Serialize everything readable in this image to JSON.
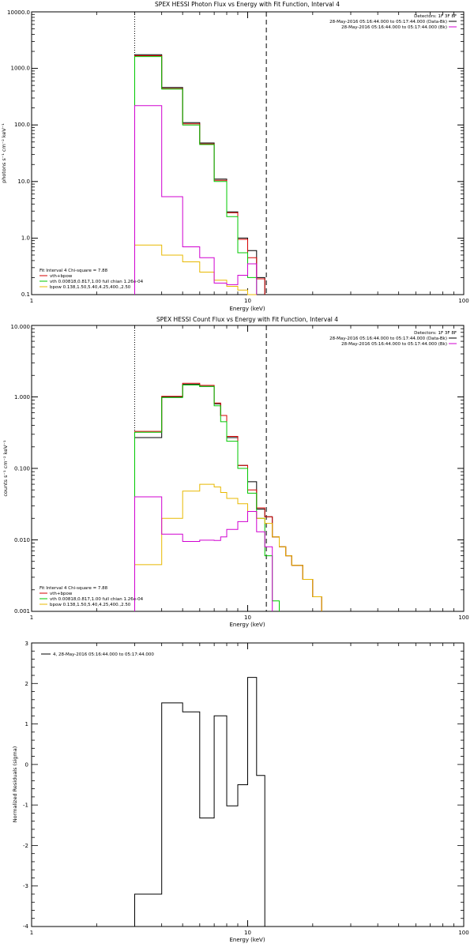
{
  "colors": {
    "data": "#000000",
    "total": "#d40000",
    "thermal": "#00c800",
    "bpow": "#e8b800",
    "background": "#d000d0"
  },
  "chart_data": [
    {
      "type": "line",
      "title": "SPEX HESSI Photon Flux vs Energy with Fit Function, Interval 4",
      "xlabel": "Energy (keV)",
      "ylabel": "photons s⁻¹ cm⁻² keV⁻¹",
      "xscale": "log",
      "yscale": "log",
      "xlim": [
        1,
        100
      ],
      "ylim": [
        0.1,
        10000
      ],
      "xtick_labels": [
        "1",
        "10",
        "100"
      ],
      "ytick_labels": [
        "0.1",
        "1.0",
        "10.0",
        "100.0",
        "1000.0",
        "10000.0"
      ],
      "vlines": [
        {
          "x": 3,
          "style": "dotted"
        },
        {
          "x": 12.2,
          "style": "dashed"
        }
      ],
      "legend_tr": [
        "Detectors: 1F 3F 8F",
        "28-May-2016 05:16:44.000 to 05:17:44.000 (Data-Bk)",
        "28-May-2016 05:16:44.000 to 05:17:44.000 (Bk)"
      ],
      "legend_bl_title": "Fit Interval  4   Chi-square = 7.88",
      "legend_bl": [
        "vth+bpow",
        "vth 0.00818,0.817,1.00  full chian 1.26e-04",
        "bpow 0.138,1.50,5.40,4.25,400.,2.50"
      ],
      "edges": [
        3,
        4,
        5,
        6,
        7,
        8,
        9,
        10,
        11,
        12,
        13
      ],
      "series": [
        {
          "name": "Data-Bk",
          "values": [
            1750,
            460,
            110,
            48,
            11,
            2.9,
            1.0,
            0.6,
            0.2,
            0.1
          ]
        },
        {
          "name": "vth+bpow",
          "values": [
            1680,
            440,
            105,
            46,
            10.5,
            2.8,
            0.95,
            0.45,
            0.19,
            null
          ]
        },
        {
          "name": "vth",
          "values": [
            1620,
            430,
            100,
            45,
            10,
            2.4,
            0.55,
            0.2,
            null,
            null
          ]
        },
        {
          "name": "bpow",
          "values": [
            0.75,
            0.5,
            0.38,
            0.25,
            0.18,
            0.14,
            0.12,
            0.1,
            null,
            null
          ]
        },
        {
          "name": "Bk",
          "values": [
            220,
            5.4,
            0.7,
            0.45,
            0.16,
            0.15,
            0.22,
            0.35,
            null,
            null
          ]
        }
      ]
    },
    {
      "type": "line",
      "title": "SPEX HESSI Count Flux vs Energy with Fit Function, Interval 4",
      "xlabel": "Energy (keV)",
      "ylabel": "counts s⁻¹ cm⁻² keV⁻¹",
      "xscale": "log",
      "yscale": "log",
      "xlim": [
        1,
        100
      ],
      "ylim": [
        0.001,
        10
      ],
      "xtick_labels": [
        "1",
        "10",
        "100"
      ],
      "ytick_labels": [
        "0.001",
        "0.010",
        "0.100",
        "1.000",
        "10.000"
      ],
      "vlines": [
        {
          "x": 3,
          "style": "dotted"
        },
        {
          "x": 12.2,
          "style": "dashed"
        }
      ],
      "legend_tr": [
        "Detectors: 1F 3F 8F",
        "28-May-2016 05:16:44.000 to 05:17:44.000 (Data-Bk)",
        "28-May-2016 05:16:44.000 to 05:17:44.000 (Bk)"
      ],
      "legend_bl_title": "Fit Interval  4   Chi-square = 7.88",
      "legend_bl": [
        "vth+bpow",
        "vth 0.00818,0.817,1.00  full chian 1.26e-04",
        "bpow 0.138,1.50,5.40,4.25,400.,2.50"
      ],
      "edges": [
        3,
        4,
        5,
        6,
        7,
        7.5,
        8,
        9,
        10,
        11,
        12,
        13,
        14,
        15,
        16,
        18,
        20,
        22
      ],
      "series": [
        {
          "name": "Data-Bk",
          "values": [
            0.27,
            1.0,
            1.5,
            1.4,
            0.8,
            0.55,
            0.27,
            0.11,
            0.065,
            0.027,
            0.021,
            0.011,
            0.008,
            0.006,
            0.0044,
            0.0028,
            0.0016
          ]
        },
        {
          "name": "vth+bpow",
          "values": [
            0.33,
            1.02,
            1.55,
            1.45,
            0.82,
            0.55,
            0.28,
            0.11,
            0.05,
            0.028,
            0.021,
            0.011,
            0.008,
            0.006,
            0.0044,
            0.0028,
            0.0016
          ]
        },
        {
          "name": "vth",
          "values": [
            0.32,
            0.98,
            1.47,
            1.4,
            0.75,
            0.45,
            0.24,
            0.1,
            0.045,
            0.02,
            0.006,
            0.0014,
            null,
            null,
            null,
            null,
            null
          ]
        },
        {
          "name": "bpow",
          "values": [
            0.0045,
            0.02,
            0.048,
            0.06,
            0.055,
            0.046,
            0.038,
            0.032,
            0.025,
            0.02,
            0.017,
            0.011,
            0.008,
            0.006,
            0.0044,
            0.0028,
            0.0016
          ]
        },
        {
          "name": "Bk",
          "values": [
            0.04,
            0.012,
            0.0095,
            0.0099,
            0.0098,
            0.011,
            0.014,
            0.018,
            0.025,
            0.013,
            0.008,
            null,
            null,
            null,
            null,
            null,
            null
          ]
        }
      ]
    },
    {
      "type": "line",
      "xlabel": "Energy (keV)",
      "ylabel": "Normalized Residuals (sigma)",
      "xscale": "log",
      "xlim": [
        1,
        100
      ],
      "ylim": [
        -4,
        3
      ],
      "xtick_labels": [
        "1",
        "10",
        "100"
      ],
      "ytick_labels": [
        "-4",
        "-3",
        "-2",
        "-1",
        "0",
        "1",
        "2",
        "3"
      ],
      "legend_tl": "4, 28-May-2016 05:16:44.000 to 05:17:44.000",
      "edges": [
        3,
        4,
        5,
        6,
        7,
        8,
        9,
        10,
        11,
        12
      ],
      "series": [
        {
          "name": "4, 28-May-2016 05:16:44.000 to 05:17:44.000",
          "values": [
            -3.2,
            1.52,
            1.3,
            -1.32,
            1.2,
            -1.02,
            -0.5,
            2.15,
            -0.27
          ]
        }
      ]
    }
  ]
}
